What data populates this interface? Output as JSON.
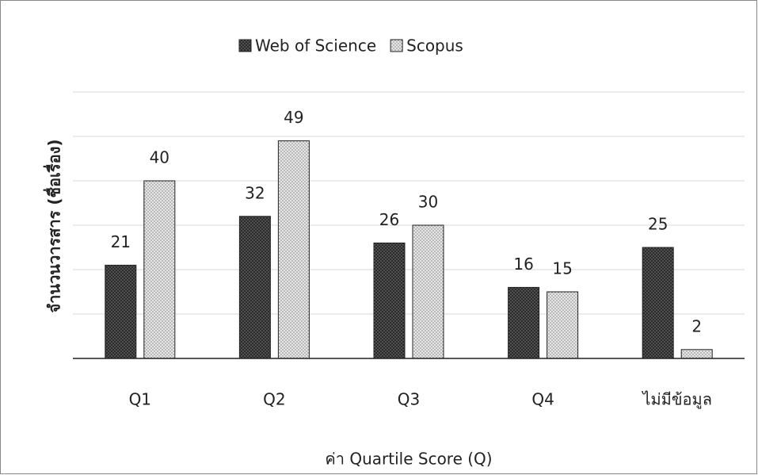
{
  "chart_data": {
    "type": "bar",
    "categories": [
      "Q1",
      "Q2",
      "Q3",
      "Q4",
      "ไม่มีข้อมูล"
    ],
    "series": [
      {
        "name": "Web of Science",
        "color": "#2b2b2b",
        "values": [
          21,
          32,
          26,
          16,
          25
        ]
      },
      {
        "name": "Scopus",
        "color": "#e6e6e6",
        "values": [
          40,
          49,
          30,
          15,
          2
        ]
      }
    ],
    "ylabel": "จำนวนวารสาร (ชื่อเรื่อง)",
    "xlabel": "ค่า Quartile Score (Q)",
    "ylim": [
      0,
      60
    ],
    "yticks": [
      0,
      10,
      20,
      30,
      40,
      50,
      60
    ],
    "grid": true,
    "legend": "top"
  }
}
